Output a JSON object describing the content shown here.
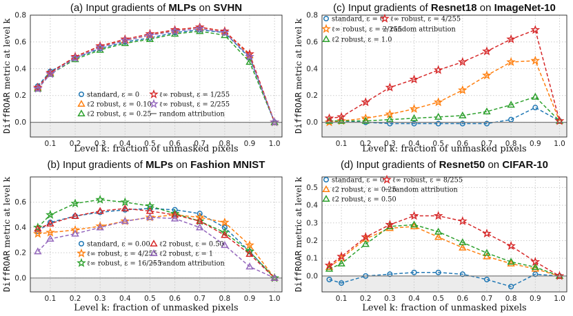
{
  "chart_data": [
    {
      "type": "line",
      "title_prefix": "(a) Input gradients of ",
      "title_bold1": "MLPs",
      "title_mid": " on ",
      "title_bold2": "SVHN",
      "xlabel": "Level k: fraction of unmasked pixels",
      "ylabel_mono": "DiffROAR",
      "ylabel_rest": " metric at level k",
      "x": [
        0.05,
        0.1,
        0.2,
        0.3,
        0.4,
        0.5,
        0.6,
        0.7,
        0.8,
        0.9,
        1.0
      ],
      "xticks": [
        "0.1",
        "0.2",
        "0.3",
        "0.4",
        "0.5",
        "0.6",
        "0.7",
        "0.8",
        "0.9",
        "1.0"
      ],
      "ylim": [
        -0.11,
        0.8
      ],
      "yticks": [
        "0.0",
        "0.2",
        "0.4",
        "0.6",
        "0.8"
      ],
      "legend_position": "bottom-center",
      "legend_cols": 2,
      "series": [
        {
          "name": "standard, ε = 0",
          "color": "#1f77b4",
          "marker": "circle",
          "values": [
            0.27,
            0.38,
            0.48,
            0.55,
            0.6,
            0.63,
            0.67,
            0.69,
            0.67,
            0.48,
            0.0
          ]
        },
        {
          "name": "ℓ2 robust, ε = 0.10",
          "color": "#ff7f0e",
          "marker": "triangle",
          "values": [
            0.26,
            0.37,
            0.49,
            0.57,
            0.61,
            0.65,
            0.69,
            0.71,
            0.68,
            0.5,
            0.0
          ]
        },
        {
          "name": "ℓ2 robust, ε = 0.25",
          "color": "#2ca02c",
          "marker": "triangle",
          "values": [
            0.25,
            0.36,
            0.47,
            0.54,
            0.59,
            0.62,
            0.66,
            0.68,
            0.65,
            0.45,
            0.0
          ]
        },
        {
          "name": "ℓ∞ robust, ε = 1/255",
          "color": "#d62728",
          "marker": "star",
          "values": [
            0.26,
            0.37,
            0.49,
            0.57,
            0.62,
            0.66,
            0.69,
            0.71,
            0.68,
            0.51,
            0.0
          ]
        },
        {
          "name": "ℓ∞ robust, ε = 2/255",
          "color": "#9467bd",
          "marker": "star",
          "values": [
            0.25,
            0.36,
            0.48,
            0.56,
            0.61,
            0.65,
            0.68,
            0.7,
            0.67,
            0.49,
            0.0
          ]
        },
        {
          "name": "random attribution",
          "color": "#888888",
          "marker": "none",
          "values": [
            0,
            0,
            0,
            0,
            0,
            0,
            0,
            0,
            0,
            0,
            0
          ]
        }
      ]
    },
    {
      "type": "line",
      "title_prefix": "(c) Input gradients of ",
      "title_bold1": "Resnet18",
      "title_mid": " on ",
      "title_bold2": "ImageNet-10",
      "xlabel": "Level k: fraction of unmasked pixels",
      "ylabel_mono": "DiffROAR",
      "ylabel_rest": " metric at level k",
      "x": [
        0.05,
        0.1,
        0.2,
        0.3,
        0.4,
        0.5,
        0.6,
        0.7,
        0.8,
        0.9,
        1.0
      ],
      "xticks": [
        "0.1",
        "0.2",
        "0.3",
        "0.4",
        "0.5",
        "0.6",
        "0.7",
        "0.8",
        "0.9",
        "1.0"
      ],
      "ylim": [
        -0.11,
        0.8
      ],
      "yticks": [
        "0.0",
        "0.2",
        "0.4",
        "0.6",
        "0.8"
      ],
      "legend_position": "top-left",
      "legend_cols": 2,
      "series": [
        {
          "name": "standard, ε = 0",
          "color": "#1f77b4",
          "marker": "circle",
          "values": [
            0.01,
            0.01,
            0.0,
            -0.01,
            -0.01,
            -0.01,
            -0.01,
            -0.01,
            0.02,
            0.11,
            0.01
          ]
        },
        {
          "name": "ℓ∞ robust, ε = 2/255",
          "color": "#ff7f0e",
          "marker": "star",
          "values": [
            0.0,
            0.01,
            0.03,
            0.06,
            0.1,
            0.15,
            0.24,
            0.35,
            0.45,
            0.46,
            0.01
          ]
        },
        {
          "name": "ℓ2 robust, ε = 1.0",
          "color": "#2ca02c",
          "marker": "triangle",
          "values": [
            0.01,
            0.01,
            0.01,
            0.02,
            0.03,
            0.04,
            0.05,
            0.08,
            0.13,
            0.19,
            0.01
          ]
        },
        {
          "name": "ℓ∞ robust, ε = 4/255",
          "color": "#d62728",
          "marker": "star",
          "values": [
            0.03,
            0.04,
            0.15,
            0.26,
            0.32,
            0.39,
            0.45,
            0.53,
            0.62,
            0.69,
            0.01
          ]
        },
        {
          "name": "random attribution",
          "color": "#888888",
          "marker": "none",
          "values": [
            0,
            0,
            0,
            0,
            0,
            0,
            0,
            0,
            0,
            0,
            0
          ]
        }
      ]
    },
    {
      "type": "line",
      "title_prefix": "(b) Input gradients of ",
      "title_bold1": "MLPs",
      "title_mid": " on ",
      "title_bold2": "Fashion MNIST",
      "xlabel": "Level k: fraction of unmasked pixels",
      "ylabel_mono": "DiffROAR",
      "ylabel_rest": " metric at level k",
      "x": [
        0.05,
        0.1,
        0.2,
        0.3,
        0.4,
        0.5,
        0.6,
        0.7,
        0.8,
        0.9,
        1.0
      ],
      "xticks": [
        "0.1",
        "0.2",
        "0.3",
        "0.4",
        "0.5",
        "0.6",
        "0.7",
        "0.8",
        "0.9",
        "1.0"
      ],
      "ylim": [
        -0.11,
        0.8
      ],
      "yticks": [
        "0.0",
        "0.2",
        "0.4",
        "0.6"
      ],
      "legend_position": "bottom-center",
      "legend_cols": 2,
      "series": [
        {
          "name": "standard, ε = 0.00",
          "color": "#1f77b4",
          "marker": "circle",
          "values": [
            0.37,
            0.44,
            0.49,
            0.52,
            0.54,
            0.55,
            0.54,
            0.51,
            0.4,
            0.21,
            0.0
          ]
        },
        {
          "name": "ℓ∞ robust, ε = 4/255",
          "color": "#ff7f0e",
          "marker": "star",
          "values": [
            0.35,
            0.36,
            0.38,
            0.41,
            0.45,
            0.48,
            0.5,
            0.48,
            0.44,
            0.26,
            0.0
          ]
        },
        {
          "name": "ℓ∞ robust, ε = 16/255",
          "color": "#2ca02c",
          "marker": "star",
          "values": [
            0.4,
            0.5,
            0.59,
            0.62,
            0.6,
            0.57,
            0.51,
            0.45,
            0.36,
            0.21,
            0.0
          ]
        },
        {
          "name": "ℓ2 robust, ε = 0.50",
          "color": "#d62728",
          "marker": "triangle",
          "values": [
            0.39,
            0.43,
            0.49,
            0.53,
            0.55,
            0.53,
            0.5,
            0.45,
            0.34,
            0.19,
            0.0
          ]
        },
        {
          "name": "ℓ2 robust, ε = 1",
          "color": "#9467bd",
          "marker": "triangle",
          "values": [
            0.21,
            0.31,
            0.35,
            0.4,
            0.45,
            0.48,
            0.47,
            0.4,
            0.26,
            0.09,
            0.0
          ]
        },
        {
          "name": "random attribution",
          "color": "#888888",
          "marker": "none",
          "values": [
            0,
            0,
            0,
            0,
            0,
            0,
            0,
            0,
            0,
            0,
            0
          ]
        }
      ]
    },
    {
      "type": "line",
      "title_prefix": "(d) Input gradients of ",
      "title_bold1": "Resnet50",
      "title_mid": " on ",
      "title_bold2": "CIFAR-10",
      "xlabel": "Level k: fraction of unmasked pixels",
      "ylabel_mono": "DiffROAR",
      "ylabel_rest": " metric at level k",
      "x": [
        0.05,
        0.1,
        0.2,
        0.3,
        0.4,
        0.5,
        0.6,
        0.7,
        0.8,
        0.9,
        1.0
      ],
      "xticks": [
        "0.1",
        "0.2",
        "0.3",
        "0.4",
        "0.5",
        "0.6",
        "0.7",
        "0.8",
        "0.9",
        "1.0"
      ],
      "ylim": [
        -0.09,
        0.56
      ],
      "yticks": [
        "0.0",
        "0.1",
        "0.2",
        "0.3",
        "0.4",
        "0.5"
      ],
      "legend_position": "top-left",
      "legend_cols": 2,
      "series": [
        {
          "name": "standard, ε = 0",
          "color": "#1f77b4",
          "marker": "circle",
          "values": [
            -0.02,
            -0.04,
            0.0,
            0.01,
            0.02,
            0.02,
            0.01,
            -0.02,
            -0.06,
            0.01,
            0.0
          ]
        },
        {
          "name": "ℓ2 robust, ε = 0.25",
          "color": "#ff7f0e",
          "marker": "triangle",
          "values": [
            0.05,
            0.1,
            0.21,
            0.27,
            0.28,
            0.22,
            0.16,
            0.11,
            0.07,
            0.04,
            0.0
          ]
        },
        {
          "name": "ℓ2 robust, ε = 0.50",
          "color": "#2ca02c",
          "marker": "triangle",
          "values": [
            0.04,
            0.07,
            0.18,
            0.28,
            0.29,
            0.25,
            0.19,
            0.13,
            0.08,
            0.05,
            0.0
          ]
        },
        {
          "name": "ℓ∞ robust, ε = 8/255",
          "color": "#d62728",
          "marker": "star",
          "values": [
            0.06,
            0.11,
            0.22,
            0.29,
            0.34,
            0.34,
            0.31,
            0.24,
            0.17,
            0.08,
            0.0
          ]
        },
        {
          "name": "random attribution",
          "color": "#888888",
          "marker": "none",
          "values": [
            0,
            0,
            0,
            0,
            0,
            0,
            0,
            0,
            0,
            0,
            0
          ]
        }
      ]
    }
  ]
}
